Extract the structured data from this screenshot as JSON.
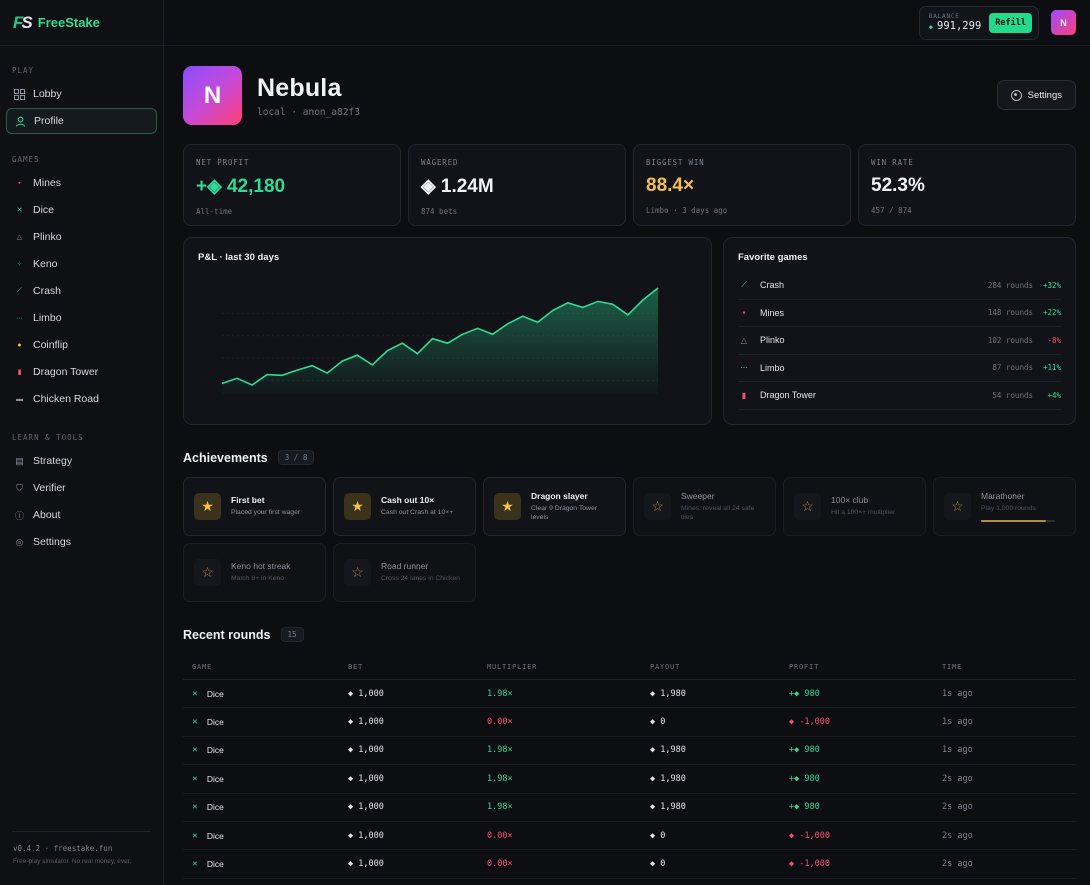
{
  "brand": {
    "logo": "FS",
    "name": "FreeStake"
  },
  "sidebar": {
    "play_heading": "PLAY",
    "play_items": [
      {
        "label": "Lobby",
        "icon": "grid-icon"
      },
      {
        "label": "Profile",
        "icon": "user-icon"
      }
    ],
    "games_heading": "GAMES",
    "game_items": [
      {
        "label": "Mines",
        "icon": "mines-icon",
        "glyph": "▪",
        "color": "#ff4d6a"
      },
      {
        "label": "Dice",
        "icon": "dice-icon",
        "glyph": "✕",
        "color": "#2fdc95"
      },
      {
        "label": "Plinko",
        "icon": "plinko-icon",
        "glyph": "△",
        "color": "#8a909b"
      },
      {
        "label": "Keno",
        "icon": "keno-icon",
        "glyph": "⁘",
        "color": "#2fdc95"
      },
      {
        "label": "Crash",
        "icon": "crash-icon",
        "glyph": "⟋",
        "color": "#2fdc95"
      },
      {
        "label": "Limbo",
        "icon": "limbo-icon",
        "glyph": "···",
        "color": "#2fdc95"
      },
      {
        "label": "Coinflip",
        "icon": "coinflip-icon",
        "glyph": "●",
        "color": "#f5c04a"
      },
      {
        "label": "Dragon Tower",
        "icon": "dragon-tower-icon",
        "glyph": "▮",
        "color": "#ff4d6a"
      },
      {
        "label": "Chicken Road",
        "icon": "chicken-road-icon",
        "glyph": "▬",
        "color": "#8a909b"
      }
    ],
    "tools_heading": "LEARN & TOOLS",
    "tool_items": [
      {
        "label": "Strategy",
        "icon": "document-icon",
        "glyph": "▤"
      },
      {
        "label": "Verifier",
        "icon": "shield-icon",
        "glyph": "⛉"
      },
      {
        "label": "About",
        "icon": "info-icon",
        "glyph": "ⓘ"
      },
      {
        "label": "Settings",
        "icon": "gear-icon",
        "glyph": "◎"
      }
    ],
    "version": "v0.4.2 · freestake.fun",
    "disclaimer": "Free-play simulator. No real money, ever."
  },
  "topbar": {
    "balance_label": "BALANCE",
    "balance_value": "991,299",
    "refill_label": "Refill",
    "avatar_initial": "N"
  },
  "profile": {
    "initial": "N",
    "name": "Nebula",
    "subtitle": "local · anon_a82f3",
    "settings_label": "Settings"
  },
  "stats": [
    {
      "label": "NET PROFIT",
      "value": "+◈ 42,180",
      "sub": "All-time",
      "tone": "green"
    },
    {
      "label": "WAGERED",
      "value": "◈ 1.24M",
      "sub": "874 bets",
      "tone": ""
    },
    {
      "label": "BIGGEST WIN",
      "value": "88.4×",
      "sub": "Limbo · 3 days ago",
      "tone": "yellow"
    },
    {
      "label": "WIN RATE",
      "value": "52.3%",
      "sub": "457 / 874",
      "tone": ""
    }
  ],
  "chart_data": {
    "type": "area",
    "title": "P&L · last 30 days",
    "x": [
      1,
      2,
      3,
      4,
      5,
      6,
      7,
      8,
      9,
      10,
      11,
      12,
      13,
      14,
      15,
      16,
      17,
      18,
      19,
      20,
      21,
      22,
      23,
      24,
      25,
      26,
      27,
      28,
      29,
      30
    ],
    "values": [
      2000,
      5500,
      1000,
      8000,
      7500,
      11000,
      14000,
      9000,
      17000,
      21000,
      14500,
      24000,
      29000,
      22000,
      32000,
      29000,
      35000,
      39000,
      35000,
      42000,
      47000,
      43000,
      51000,
      56000,
      53000,
      57000,
      55000,
      48000,
      58000,
      66000
    ],
    "ylim": [
      -5000,
      70000
    ],
    "grid": true,
    "color": "#2fdc95"
  },
  "favorites": {
    "title": "Favorite games",
    "items": [
      {
        "name": "Crash",
        "glyph": "⟋",
        "color": "#2fdc95",
        "rounds": "284 rounds",
        "pct": "+32%",
        "tone": "pos"
      },
      {
        "name": "Mines",
        "glyph": "▪",
        "color": "#ff4d6a",
        "rounds": "148 rounds",
        "pct": "+22%",
        "tone": "pos"
      },
      {
        "name": "Plinko",
        "glyph": "△",
        "color": "#8a909b",
        "rounds": "102 rounds",
        "pct": "-8%",
        "tone": "neg"
      },
      {
        "name": "Limbo",
        "glyph": "···",
        "color": "#2fdc95",
        "rounds": "87 rounds",
        "pct": "+11%",
        "tone": "pos"
      },
      {
        "name": "Dragon Tower",
        "glyph": "▮",
        "color": "#ff4d6a",
        "rounds": "54 rounds",
        "pct": "+4%",
        "tone": "pos"
      }
    ]
  },
  "achievements": {
    "title": "Achievements",
    "count": "3 / 8",
    "items": [
      {
        "title": "First bet",
        "desc": "Placed your first wager",
        "unlocked": true
      },
      {
        "title": "Cash out 10×",
        "desc": "Cash out Crash at 10×+",
        "unlocked": true
      },
      {
        "title": "Dragon slayer",
        "desc": "Clear 9 Dragon Tower levels",
        "unlocked": true
      },
      {
        "title": "Sweeper",
        "desc": "Mines: reveal all 24 safe tiles",
        "unlocked": false
      },
      {
        "title": "100× club",
        "desc": "Hit a 100×+ multiplier",
        "unlocked": false
      },
      {
        "title": "Marathoner",
        "desc": "Play 1,000 rounds",
        "unlocked": false,
        "progress": 0.874
      },
      {
        "title": "Keno hot streak",
        "desc": "Match 8+ in Keno",
        "unlocked": false
      },
      {
        "title": "Road runner",
        "desc": "Cross 24 lanes in Chicken",
        "unlocked": false
      }
    ]
  },
  "recent": {
    "title": "Recent rounds",
    "count": "15",
    "columns": [
      "GAME",
      "BET",
      "MULTIPLIER",
      "PAYOUT",
      "PROFIT",
      "TIME"
    ],
    "rows": [
      {
        "game": "Dice",
        "bet": "◆ 1,000",
        "mult": "1.98×",
        "payout": "◆ 1,980",
        "profit": "+◆ 980",
        "time": "1s ago",
        "win": true
      },
      {
        "game": "Dice",
        "bet": "◆ 1,000",
        "mult": "0.00×",
        "payout": "◆ 0",
        "profit": "◆ -1,000",
        "time": "1s ago",
        "win": false
      },
      {
        "game": "Dice",
        "bet": "◆ 1,000",
        "mult": "1.98×",
        "payout": "◆ 1,980",
        "profit": "+◆ 980",
        "time": "1s ago",
        "win": true
      },
      {
        "game": "Dice",
        "bet": "◆ 1,000",
        "mult": "1.98×",
        "payout": "◆ 1,980",
        "profit": "+◆ 980",
        "time": "2s ago",
        "win": true
      },
      {
        "game": "Dice",
        "bet": "◆ 1,000",
        "mult": "1.98×",
        "payout": "◆ 1,980",
        "profit": "+◆ 980",
        "time": "2s ago",
        "win": true
      },
      {
        "game": "Dice",
        "bet": "◆ 1,000",
        "mult": "0.00×",
        "payout": "◆ 0",
        "profit": "◆ -1,000",
        "time": "2s ago",
        "win": false
      },
      {
        "game": "Dice",
        "bet": "◆ 1,000",
        "mult": "0.00×",
        "payout": "◆ 0",
        "profit": "◆ -1,000",
        "time": "2s ago",
        "win": false
      },
      {
        "game": "Dice",
        "bet": "◆ 1,000",
        "mult": "0.00×",
        "payout": "◆ 0",
        "profit": "◆ -1,000",
        "time": "2s ago",
        "win": false
      }
    ]
  }
}
